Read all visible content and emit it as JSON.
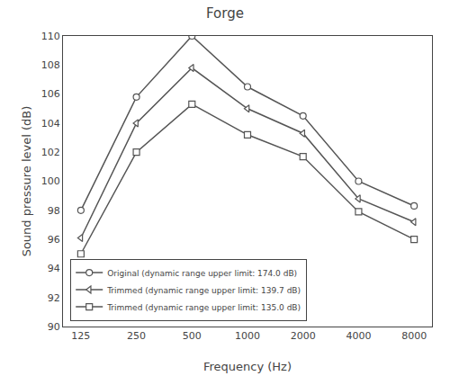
{
  "chart_data": {
    "type": "line",
    "title": "Forge",
    "x_label": "Frequency (Hz)",
    "y_label": "Sound pressure level (dB)",
    "x": [
      125,
      250,
      500,
      1000,
      2000,
      4000,
      8000
    ],
    "series": [
      {
        "name": "Original (dynamic range upper limit: 174.0 dB)",
        "color": "#555555",
        "marker": "circle",
        "values": [
          98.0,
          105.8,
          110.0,
          106.5,
          104.5,
          100.0,
          98.3
        ]
      },
      {
        "name": "Trimmed (dynamic range upper limit: 139.7 dB)",
        "color": "#555555",
        "marker": "triangle-left",
        "values": [
          96.1,
          104.0,
          107.8,
          105.0,
          103.3,
          98.8,
          97.2
        ]
      },
      {
        "name": "Trimmed (dynamic range upper limit: 135.0 dB)",
        "color": "#555555",
        "marker": "square",
        "values": [
          95.0,
          102.0,
          105.3,
          103.2,
          101.7,
          97.9,
          96.0
        ]
      }
    ],
    "log": "x",
    "xlim": [
      100,
      10000
    ],
    "xticks": [
      125,
      250,
      500,
      1000,
      2000,
      4000,
      8000
    ],
    "ylim": [
      90,
      110
    ],
    "yticks": [
      90,
      92,
      94,
      96,
      98,
      100,
      102,
      104,
      106,
      108,
      110
    ],
    "grid": false,
    "legend": "lower left"
  }
}
